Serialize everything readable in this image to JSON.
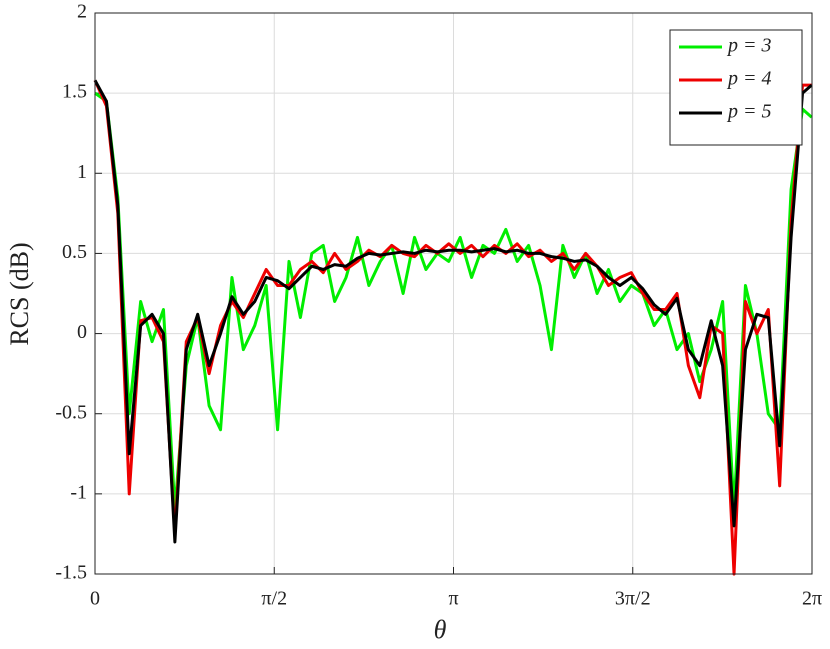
{
  "chart_data": {
    "type": "line",
    "xlabel": "θ",
    "ylabel": "RCS (dB)",
    "xlim": [
      0,
      6.2832
    ],
    "ylim": [
      -1.5,
      2
    ],
    "xticks": [
      0,
      {
        "value": 1.5708,
        "label": "π/2"
      },
      {
        "value": 3.1416,
        "label": "π"
      },
      {
        "value": 4.7124,
        "label": "3π/2"
      },
      {
        "value": 6.2832,
        "label": "2π"
      }
    ],
    "yticks": [
      -1.5,
      -1,
      -0.5,
      0,
      0.5,
      1,
      1.5,
      2
    ],
    "grid": true,
    "legend": "upper right",
    "x": [
      0,
      0.1,
      0.2,
      0.3,
      0.4,
      0.5,
      0.6,
      0.7,
      0.8,
      0.9,
      1.0,
      1.1,
      1.2,
      1.3,
      1.4,
      1.5,
      1.6,
      1.7,
      1.8,
      1.9,
      2.0,
      2.1,
      2.2,
      2.3,
      2.4,
      2.5,
      2.6,
      2.7,
      2.8,
      2.9,
      3.0,
      3.1,
      3.2,
      3.3,
      3.4,
      3.5,
      3.6,
      3.7,
      3.8,
      3.9,
      4.0,
      4.1,
      4.2,
      4.3,
      4.4,
      4.5,
      4.6,
      4.7,
      4.8,
      4.9,
      5.0,
      5.1,
      5.2,
      5.3,
      5.4,
      5.5,
      5.6,
      5.7,
      5.8,
      5.9,
      6.0,
      6.1,
      6.2,
      6.28
    ],
    "series": [
      {
        "name": "p = 3",
        "color": "#00ee00",
        "values": [
          1.5,
          1.45,
          0.85,
          -0.5,
          0.2,
          -0.05,
          0.15,
          -1.1,
          -0.2,
          0.1,
          -0.45,
          -0.6,
          0.35,
          -0.1,
          0.05,
          0.3,
          -0.6,
          0.45,
          0.1,
          0.5,
          0.55,
          0.2,
          0.35,
          0.6,
          0.3,
          0.45,
          0.55,
          0.25,
          0.6,
          0.4,
          0.5,
          0.45,
          0.6,
          0.35,
          0.55,
          0.5,
          0.65,
          0.45,
          0.55,
          0.3,
          -0.1,
          0.55,
          0.35,
          0.5,
          0.25,
          0.4,
          0.2,
          0.3,
          0.25,
          0.05,
          0.15,
          -0.1,
          0.0,
          -0.3,
          -0.1,
          0.2,
          -1.1,
          0.3,
          0.0,
          -0.5,
          -0.6,
          0.9,
          1.4,
          1.35
        ]
      },
      {
        "name": "p = 4",
        "color": "#ee0000",
        "values": [
          1.58,
          1.42,
          0.75,
          -1.0,
          0.08,
          0.1,
          -0.05,
          -1.25,
          -0.05,
          0.1,
          -0.25,
          0.05,
          0.2,
          0.1,
          0.25,
          0.4,
          0.3,
          0.3,
          0.4,
          0.45,
          0.38,
          0.5,
          0.4,
          0.45,
          0.52,
          0.48,
          0.55,
          0.5,
          0.48,
          0.55,
          0.5,
          0.56,
          0.5,
          0.55,
          0.48,
          0.55,
          0.5,
          0.56,
          0.48,
          0.52,
          0.45,
          0.5,
          0.4,
          0.5,
          0.42,
          0.3,
          0.35,
          0.38,
          0.25,
          0.15,
          0.15,
          0.25,
          -0.2,
          -0.4,
          0.05,
          0.0,
          -1.5,
          0.2,
          0.0,
          0.15,
          -0.95,
          0.7,
          1.55,
          1.55
        ]
      },
      {
        "name": "p = 5",
        "color": "#000000",
        "values": [
          1.58,
          1.45,
          0.8,
          -0.75,
          0.05,
          0.12,
          0.0,
          -1.3,
          -0.1,
          0.12,
          -0.2,
          0.0,
          0.23,
          0.12,
          0.2,
          0.35,
          0.33,
          0.28,
          0.35,
          0.42,
          0.4,
          0.43,
          0.42,
          0.47,
          0.5,
          0.49,
          0.5,
          0.51,
          0.5,
          0.52,
          0.51,
          0.52,
          0.52,
          0.51,
          0.52,
          0.53,
          0.51,
          0.52,
          0.5,
          0.5,
          0.48,
          0.47,
          0.45,
          0.46,
          0.42,
          0.35,
          0.3,
          0.35,
          0.28,
          0.18,
          0.12,
          0.22,
          -0.1,
          -0.2,
          0.08,
          -0.2,
          -1.2,
          -0.1,
          0.12,
          0.1,
          -0.7,
          0.6,
          1.5,
          1.55
        ]
      }
    ]
  }
}
